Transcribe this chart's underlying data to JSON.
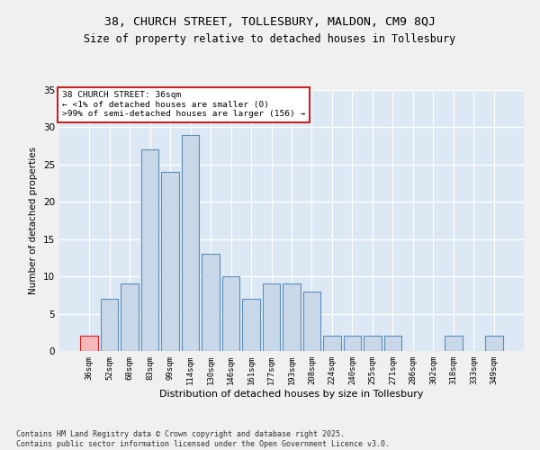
{
  "title1": "38, CHURCH STREET, TOLLESBURY, MALDON, CM9 8QJ",
  "title2": "Size of property relative to detached houses in Tollesbury",
  "xlabel": "Distribution of detached houses by size in Tollesbury",
  "ylabel": "Number of detached properties",
  "categories": [
    "36sqm",
    "52sqm",
    "68sqm",
    "83sqm",
    "99sqm",
    "114sqm",
    "130sqm",
    "146sqm",
    "161sqm",
    "177sqm",
    "193sqm",
    "208sqm",
    "224sqm",
    "240sqm",
    "255sqm",
    "271sqm",
    "286sqm",
    "302sqm",
    "318sqm",
    "333sqm",
    "349sqm"
  ],
  "values": [
    2,
    7,
    9,
    27,
    24,
    29,
    13,
    10,
    7,
    9,
    9,
    8,
    2,
    2,
    2,
    2,
    0,
    0,
    2,
    0,
    2
  ],
  "bar_color": "#c8d8e8",
  "bar_edge_color": "#5b8db8",
  "highlight_index": 0,
  "highlight_color": "#f4b8b8",
  "highlight_edge_color": "#cc2222",
  "annotation_text": "38 CHURCH STREET: 36sqm\n← <1% of detached houses are smaller (0)\n>99% of semi-detached houses are larger (156) →",
  "annotation_box_color": "#ffffff",
  "annotation_box_edge": "#cc2222",
  "background_color": "#dde8f5",
  "grid_color": "#ffffff",
  "fig_facecolor": "#f0f0f0",
  "footer": "Contains HM Land Registry data © Crown copyright and database right 2025.\nContains public sector information licensed under the Open Government Licence v3.0.",
  "ylim": [
    0,
    35
  ],
  "yticks": [
    0,
    5,
    10,
    15,
    20,
    25,
    30,
    35
  ]
}
